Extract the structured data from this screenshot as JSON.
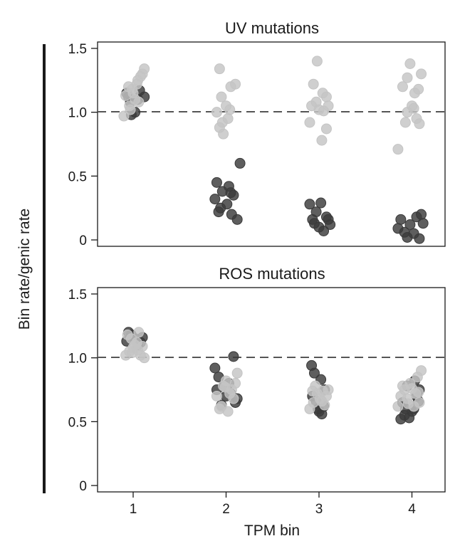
{
  "figure": {
    "y_axis_label": "Bin rate/genic rate",
    "x_axis_label": "TPM bin",
    "x_ticks": [
      "1",
      "2",
      "3",
      "4"
    ]
  },
  "chart_data": [
    {
      "type": "scatter",
      "title": "UV mutations",
      "categories": [
        "1",
        "2",
        "3",
        "4"
      ],
      "ylim": [
        -0.05,
        1.55
      ],
      "yticks": [
        {
          "value": 1.5,
          "label": "1.5"
        },
        {
          "value": 1.0,
          "label": "1.0"
        },
        {
          "value": 0.5,
          "label": "0.5"
        },
        {
          "value": 0,
          "label": "0"
        }
      ],
      "reference_line": 1.0,
      "series": [
        {
          "color": "#3a3a3a",
          "points": [
            [
              0.97,
              1.08
            ],
            [
              1.05,
              1.1
            ],
            [
              1.12,
              1.12
            ],
            [
              0.93,
              1.15
            ],
            [
              1.02,
              1.0
            ],
            [
              0.98,
              0.98
            ],
            [
              1.07,
              1.17
            ],
            [
              0.95,
              1.12
            ],
            [
              1.9,
              0.45
            ],
            [
              1.96,
              0.38
            ],
            [
              2.03,
              0.42
            ],
            [
              2.08,
              0.35
            ],
            [
              2.15,
              0.6
            ],
            [
              1.88,
              0.32
            ],
            [
              1.94,
              0.25
            ],
            [
              2.01,
              0.28
            ],
            [
              2.06,
              0.2
            ],
            [
              2.12,
              0.16
            ],
            [
              1.92,
              0.22
            ],
            [
              2.05,
              0.37
            ],
            [
              2.9,
              0.28
            ],
            [
              2.97,
              0.22
            ],
            [
              3.02,
              0.29
            ],
            [
              3.08,
              0.18
            ],
            [
              3.12,
              0.12
            ],
            [
              2.93,
              0.16
            ],
            [
              3.0,
              0.1
            ],
            [
              3.05,
              0.07
            ],
            [
              2.95,
              0.13
            ],
            [
              3.1,
              0.16
            ],
            [
              3.85,
              0.09
            ],
            [
              3.92,
              0.06
            ],
            [
              3.98,
              0.12
            ],
            [
              4.05,
              0.18
            ],
            [
              4.1,
              0.2
            ],
            [
              3.88,
              0.16
            ],
            [
              3.95,
              0.02
            ],
            [
              4.02,
              0.05
            ],
            [
              4.08,
              0.01
            ],
            [
              4.12,
              0.13
            ]
          ]
        },
        {
          "color": "#c4c4c4",
          "points": [
            [
              0.9,
              0.97
            ],
            [
              0.96,
              1.05
            ],
            [
              1.0,
              1.15
            ],
            [
              1.05,
              1.25
            ],
            [
              1.1,
              1.3
            ],
            [
              0.95,
              1.2
            ],
            [
              1.02,
              1.1
            ],
            [
              1.08,
              1.28
            ],
            [
              1.12,
              1.34
            ],
            [
              0.99,
              1.18
            ],
            [
              1.04,
              1.22
            ],
            [
              0.92,
              1.13
            ],
            [
              1.06,
              1.08
            ],
            [
              0.97,
              1.02
            ],
            [
              1.93,
              1.34
            ],
            [
              2.05,
              1.2
            ],
            [
              2.1,
              1.22
            ],
            [
              1.95,
              1.12
            ],
            [
              2.0,
              1.05
            ],
            [
              1.9,
              1.0
            ],
            [
              2.02,
              0.95
            ],
            [
              1.96,
              0.92
            ],
            [
              1.93,
              0.88
            ],
            [
              1.97,
              0.83
            ],
            [
              2.04,
              1.02
            ],
            [
              2.98,
              1.4
            ],
            [
              2.94,
              1.22
            ],
            [
              3.04,
              1.15
            ],
            [
              3.08,
              1.12
            ],
            [
              2.97,
              1.08
            ],
            [
              3.0,
              1.02
            ],
            [
              2.92,
              1.05
            ],
            [
              3.05,
              1.01
            ],
            [
              3.1,
              1.05
            ],
            [
              2.9,
              0.92
            ],
            [
              3.08,
              0.87
            ],
            [
              3.03,
              0.78
            ],
            [
              3.85,
              0.71
            ],
            [
              3.9,
              1.2
            ],
            [
              3.95,
              1.27
            ],
            [
              3.98,
              1.38
            ],
            [
              4.03,
              1.15
            ],
            [
              4.07,
              1.18
            ],
            [
              4.1,
              1.3
            ],
            [
              4.0,
              1.05
            ],
            [
              3.95,
              1.0
            ],
            [
              4.05,
              0.95
            ],
            [
              3.93,
              0.92
            ],
            [
              4.08,
              0.91
            ],
            [
              4.02,
              1.03
            ]
          ]
        }
      ]
    },
    {
      "type": "scatter",
      "title": "ROS mutations",
      "categories": [
        "1",
        "2",
        "3",
        "4"
      ],
      "ylim": [
        -0.05,
        1.55
      ],
      "yticks": [
        {
          "value": 1.5,
          "label": "1.5"
        },
        {
          "value": 1.0,
          "label": "1.0"
        },
        {
          "value": 0.5,
          "label": "0.5"
        },
        {
          "value": 0,
          "label": "0"
        }
      ],
      "reference_line": 1.0,
      "series": [
        {
          "color": "#3a3a3a",
          "points": [
            [
              0.95,
              1.2
            ],
            [
              1.02,
              1.15
            ],
            [
              1.08,
              1.12
            ],
            [
              0.98,
              1.18
            ],
            [
              1.05,
              1.1
            ],
            [
              1.1,
              1.16
            ],
            [
              0.93,
              1.13
            ],
            [
              1.88,
              0.92
            ],
            [
              1.92,
              0.85
            ],
            [
              1.98,
              0.78
            ],
            [
              2.05,
              0.72
            ],
            [
              2.1,
              0.65
            ],
            [
              2.12,
              0.68
            ],
            [
              1.95,
              0.63
            ],
            [
              2.0,
              0.7
            ],
            [
              2.08,
              1.01
            ],
            [
              2.03,
              0.8
            ],
            [
              1.9,
              0.75
            ],
            [
              2.92,
              0.94
            ],
            [
              2.95,
              0.88
            ],
            [
              3.02,
              0.83
            ],
            [
              3.05,
              0.62
            ],
            [
              3.0,
              0.58
            ],
            [
              2.97,
              0.66
            ],
            [
              3.03,
              0.56
            ],
            [
              2.93,
              0.7
            ],
            [
              3.06,
              0.75
            ],
            [
              2.99,
              0.6
            ],
            [
              3.88,
              0.52
            ],
            [
              3.92,
              0.55
            ],
            [
              3.97,
              0.53
            ],
            [
              4.02,
              0.6
            ],
            [
              4.05,
              0.7
            ],
            [
              3.95,
              0.78
            ],
            [
              4.08,
              0.75
            ],
            [
              3.9,
              0.65
            ],
            [
              4.0,
              0.58
            ],
            [
              4.03,
              0.82
            ],
            [
              4.07,
              0.66
            ],
            [
              3.93,
              0.6
            ]
          ]
        },
        {
          "color": "#c4c4c4",
          "points": [
            [
              0.92,
              1.02
            ],
            [
              0.96,
              1.05
            ],
            [
              1.0,
              1.08
            ],
            [
              1.04,
              1.12
            ],
            [
              1.08,
              1.02
            ],
            [
              1.12,
              1.0
            ],
            [
              0.98,
              1.15
            ],
            [
              1.06,
              1.2
            ],
            [
              1.02,
              1.1
            ],
            [
              0.94,
              1.18
            ],
            [
              1.1,
              1.09
            ],
            [
              0.99,
              1.04
            ],
            [
              1.05,
              1.06
            ],
            [
              1.9,
              0.7
            ],
            [
              1.95,
              0.62
            ],
            [
              2.02,
              0.58
            ],
            [
              2.06,
              0.75
            ],
            [
              2.1,
              0.8
            ],
            [
              2.12,
              0.88
            ],
            [
              1.97,
              0.78
            ],
            [
              2.0,
              0.82
            ],
            [
              2.04,
              0.72
            ],
            [
              1.93,
              0.6
            ],
            [
              2.08,
              0.68
            ],
            [
              1.99,
              0.77
            ],
            [
              2.9,
              0.6
            ],
            [
              2.94,
              0.65
            ],
            [
              2.98,
              0.72
            ],
            [
              3.04,
              0.74
            ],
            [
              3.08,
              0.7
            ],
            [
              3.1,
              0.75
            ],
            [
              2.96,
              0.78
            ],
            [
              3.01,
              0.68
            ],
            [
              3.06,
              0.63
            ],
            [
              2.93,
              0.74
            ],
            [
              3.03,
              0.66
            ],
            [
              3.85,
              0.62
            ],
            [
              3.88,
              0.7
            ],
            [
              3.92,
              0.75
            ],
            [
              3.98,
              0.8
            ],
            [
              4.04,
              0.72
            ],
            [
              4.08,
              0.65
            ],
            [
              4.1,
              0.9
            ],
            [
              4.06,
              0.85
            ],
            [
              3.95,
              0.68
            ],
            [
              4.0,
              0.76
            ],
            [
              4.02,
              0.62
            ],
            [
              3.9,
              0.78
            ],
            [
              4.07,
              0.73
            ],
            [
              3.96,
              0.64
            ]
          ]
        }
      ]
    }
  ]
}
